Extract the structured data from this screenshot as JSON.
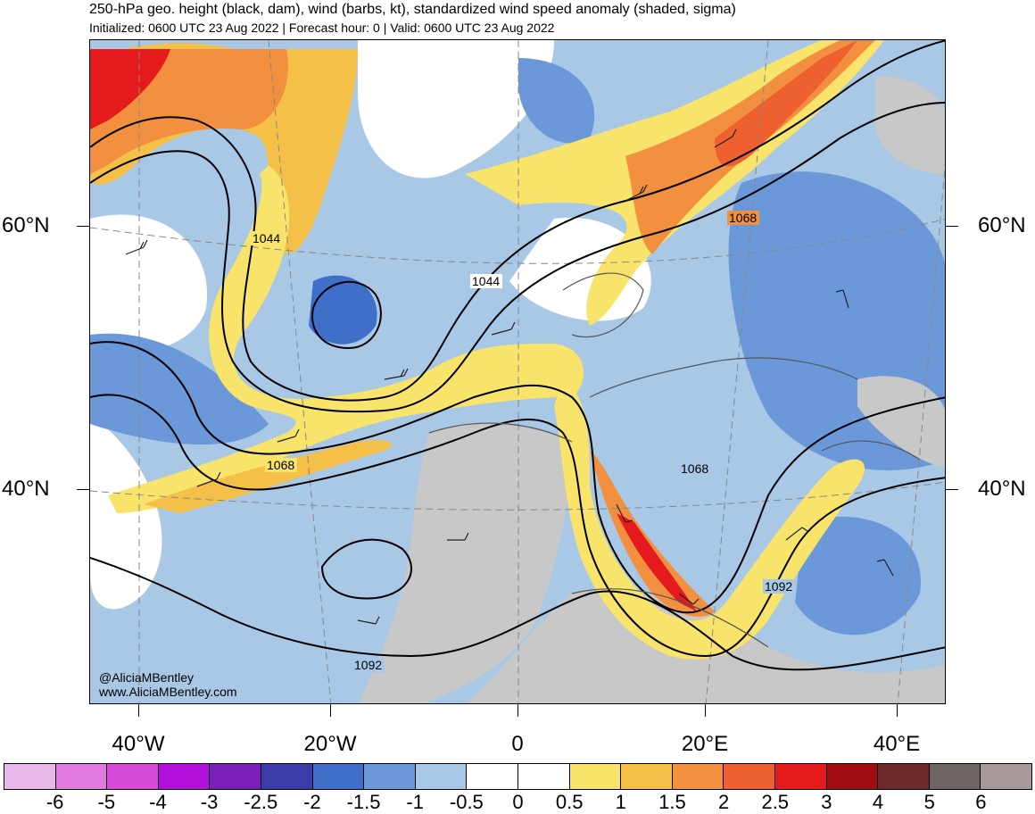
{
  "header": {
    "title": "250-hPa geo. height (black, dam), wind (barbs, kt), standardized wind speed anomaly (shaded, sigma)",
    "subtitle": "Initialized: 0600 UTC 23 Aug 2022 | Forecast hour: 0 | Valid: 0600 UTC 23 Aug 2022"
  },
  "map": {
    "lat_labels": {
      "lat60_left": "60°N",
      "lat60_right": "60°N",
      "lat40_left": "40°N",
      "lat40_right": "40°N"
    },
    "lon_labels": [
      "40°W",
      "20°W",
      "0",
      "20°E",
      "40°E"
    ],
    "contour_labels": [
      "1044",
      "1044",
      "1068",
      "1068",
      "1068",
      "1092",
      "1092"
    ],
    "credits": {
      "handle": "@AliciaMBentley",
      "website": "www.AliciaMBentley.com"
    },
    "colors": {
      "land": "#c8c8c8",
      "contour": "#000000",
      "coast": "#555555"
    }
  },
  "colorbar": {
    "colors": [
      "#e8b8e8",
      "#e07ae0",
      "#d84ad8",
      "#b010d8",
      "#7a20b8",
      "#3c3ca8",
      "#3f6fc8",
      "#6b98d8",
      "#a8c8e6",
      "#ffffff",
      "#ffffff",
      "#f8e46a",
      "#f4c048",
      "#f29040",
      "#ee6030",
      "#e41a1c",
      "#a00c10",
      "#6e2a2a",
      "#6e6464",
      "#a89a9a"
    ],
    "labels": [
      "-6",
      "-5",
      "-4",
      "-3",
      "-2.5",
      "-2",
      "-1.5",
      "-1",
      "-0.5",
      "0",
      "0.5",
      "1",
      "1.5",
      "2",
      "2.5",
      "3",
      "4",
      "5",
      "6"
    ]
  }
}
